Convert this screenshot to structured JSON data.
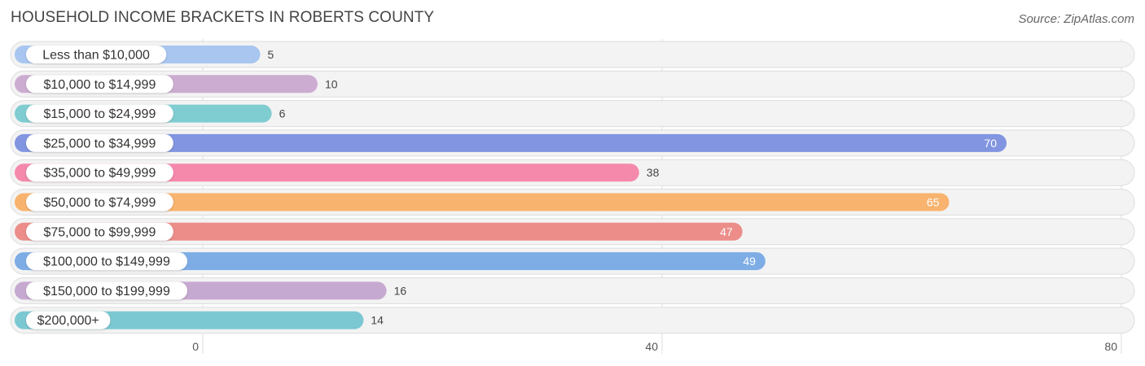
{
  "title": "HOUSEHOLD INCOME BRACKETS IN ROBERTS COUNTY",
  "source": "Source: ZipAtlas.com",
  "chart_data": {
    "type": "bar",
    "orientation": "horizontal",
    "title": "HOUSEHOLD INCOME BRACKETS IN ROBERTS COUNTY",
    "categories": [
      "Less than $10,000",
      "$10,000 to $14,999",
      "$15,000 to $24,999",
      "$25,000 to $34,999",
      "$35,000 to $49,999",
      "$50,000 to $74,999",
      "$75,000 to $99,999",
      "$100,000 to $149,999",
      "$150,000 to $199,999",
      "$200,000+"
    ],
    "values": [
      5,
      10,
      6,
      70,
      38,
      65,
      47,
      49,
      16,
      14
    ],
    "colors": [
      "#a8c6f0",
      "#ccadd1",
      "#7fcdd1",
      "#8195e0",
      "#f589ab",
      "#f8b36e",
      "#ec8d8a",
      "#7eade6",
      "#c6a9d0",
      "#7cc8d2"
    ],
    "xlim": [
      0,
      80
    ],
    "xticks": [
      0,
      40,
      80
    ],
    "grid": true
  }
}
